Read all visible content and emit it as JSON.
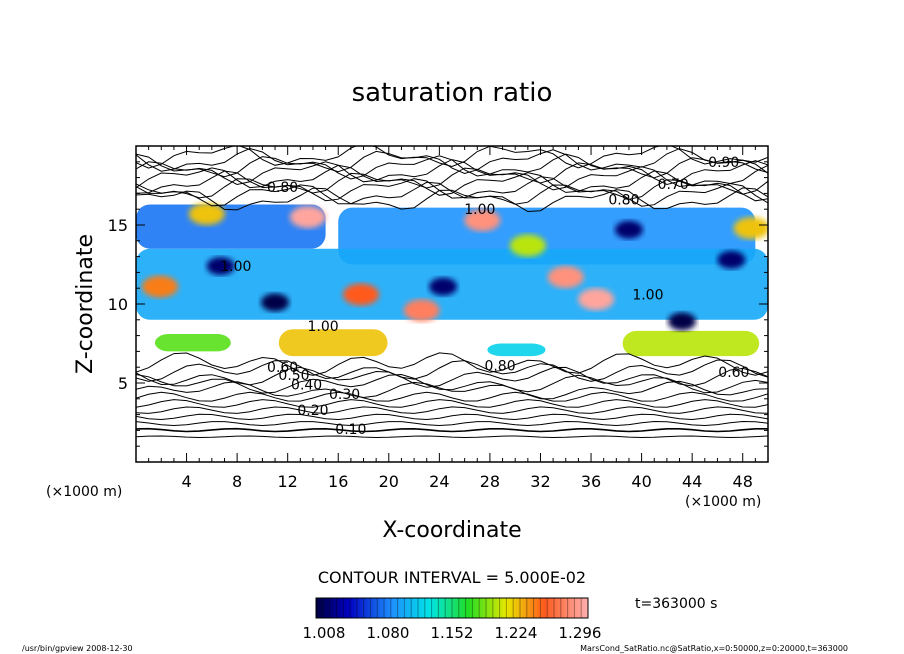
{
  "chart_data": {
    "type": "heatmap",
    "title": "saturation ratio",
    "xlabel": "X-coordinate",
    "ylabel": "Z-coordinate",
    "x_unit": "(×1000 m)",
    "z_unit": "(×1000 m)",
    "xlim": [
      0,
      50
    ],
    "ylim": [
      0,
      20
    ],
    "x_ticks": [
      4,
      8,
      12,
      16,
      20,
      24,
      28,
      32,
      36,
      40,
      44,
      48
    ],
    "y_ticks": [
      5,
      10,
      15
    ],
    "contour_interval_text": "CONTOUR INTERVAL = 5.000E-02",
    "contour_labels": [
      {
        "text": "0.10",
        "x": 17,
        "z": 2.1
      },
      {
        "text": "0.20",
        "x": 14,
        "z": 3.3
      },
      {
        "text": "0.30",
        "x": 16.5,
        "z": 4.3
      },
      {
        "text": "0.40",
        "x": 13.5,
        "z": 4.9
      },
      {
        "text": "0.50",
        "x": 12.5,
        "z": 5.5
      },
      {
        "text": "0.60",
        "x": 11.6,
        "z": 6.0
      },
      {
        "text": "0.60",
        "x": 47.3,
        "z": 5.7
      },
      {
        "text": "0.80",
        "x": 28.8,
        "z": 6.1
      },
      {
        "text": "1.00",
        "x": 14.8,
        "z": 8.6
      },
      {
        "text": "1.00",
        "x": 7.9,
        "z": 12.4
      },
      {
        "text": "1.00",
        "x": 27.2,
        "z": 16.0
      },
      {
        "text": "1.00",
        "x": 40.5,
        "z": 10.6
      },
      {
        "text": "0.80",
        "x": 11.6,
        "z": 17.4
      },
      {
        "text": "0.80",
        "x": 38.6,
        "z": 16.6
      },
      {
        "text": "0.70",
        "x": 42.5,
        "z": 17.6
      },
      {
        "text": "0.90",
        "x": 46.5,
        "z": 19.0
      }
    ],
    "colorbar": {
      "min": 1.008,
      "max": 1.296,
      "tick_labels": [
        "1.008",
        "1.080",
        "1.152",
        "1.224",
        "1.296"
      ]
    },
    "fill_regions": [
      {
        "name": "upper-left-band",
        "x": 0,
        "z": 13.5,
        "w": 15,
        "h": 2.8,
        "value": 1.08
      },
      {
        "name": "upper-center-band",
        "x": 16,
        "z": 12.5,
        "w": 33,
        "h": 3.6,
        "value": 1.09
      },
      {
        "name": "mid-band",
        "x": 0,
        "z": 9.0,
        "w": 50,
        "h": 4.5,
        "value": 1.1
      },
      {
        "name": "low-left-cloud",
        "x": 1.5,
        "z": 7.0,
        "w": 6.0,
        "h": 1.1,
        "value": 1.18
      },
      {
        "name": "low-center-cloud",
        "x": 11.3,
        "z": 6.7,
        "w": 8.6,
        "h": 1.7,
        "value": 1.22
      },
      {
        "name": "low-right-cloud",
        "x": 38.5,
        "z": 6.7,
        "w": 10.8,
        "h": 1.6,
        "value": 1.2
      },
      {
        "name": "low-mid-cloud",
        "x": 27.8,
        "z": 6.7,
        "w": 4.6,
        "h": 0.8,
        "value": 1.12
      }
    ],
    "hot_spots": [
      {
        "x": 13.6,
        "z": 15.5,
        "value": 1.29
      },
      {
        "x": 27.4,
        "z": 15.3,
        "value": 1.28
      },
      {
        "x": 34.0,
        "z": 11.7,
        "value": 1.28
      },
      {
        "x": 36.4,
        "z": 10.3,
        "value": 1.29
      },
      {
        "x": 22.6,
        "z": 9.6,
        "value": 1.27
      },
      {
        "x": 17.8,
        "z": 10.6,
        "value": 1.25
      },
      {
        "x": 1.9,
        "z": 11.1,
        "value": 1.24
      },
      {
        "x": 48.7,
        "z": 14.8,
        "value": 1.22
      },
      {
        "x": 5.6,
        "z": 15.7,
        "value": 1.22
      },
      {
        "x": 31.0,
        "z": 13.7,
        "value": 1.2
      }
    ],
    "cold_spots": [
      {
        "x": 6.7,
        "z": 12.4,
        "value": 1.02
      },
      {
        "x": 11.0,
        "z": 10.1,
        "value": 1.01
      },
      {
        "x": 24.3,
        "z": 11.1,
        "value": 1.02
      },
      {
        "x": 39.0,
        "z": 14.7,
        "value": 1.02
      },
      {
        "x": 43.2,
        "z": 8.9,
        "value": 1.01
      },
      {
        "x": 47.1,
        "z": 12.8,
        "value": 1.02
      }
    ]
  },
  "footer": {
    "time": "t=363000 s",
    "left": "/usr/bin/gpview   2008-12-30",
    "right": "MarsCond_SatRatio.nc@SatRatio,x=0:50000,z=0:20000,t=363000"
  }
}
